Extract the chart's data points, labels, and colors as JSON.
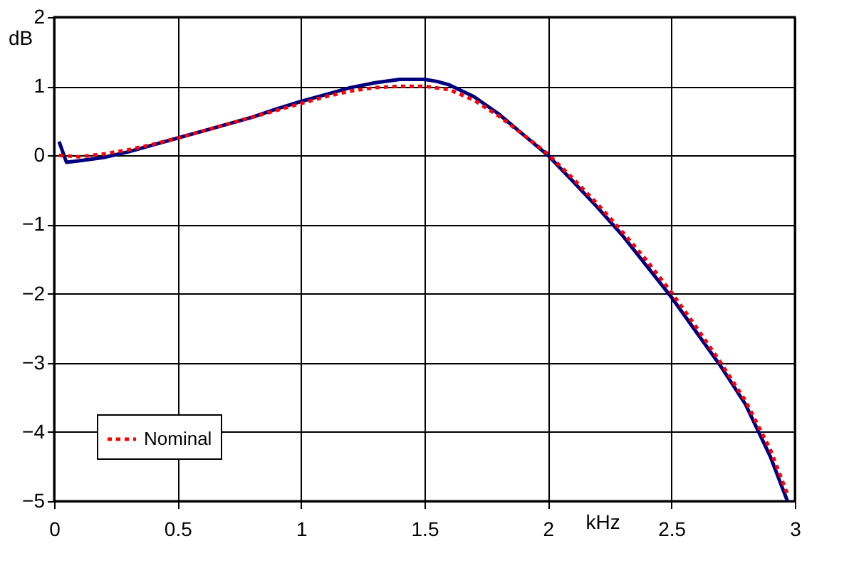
{
  "chart_data": {
    "type": "line",
    "xlabel": "kHz",
    "ylabel": "dB",
    "xlim": [
      0,
      3
    ],
    "xticks": [
      0,
      0.5,
      1,
      1.5,
      2,
      2.5,
      3
    ],
    "ylim": [
      -5,
      2
    ],
    "yticks": [
      -5,
      -4,
      -3,
      -2,
      -1,
      0,
      1,
      2
    ],
    "grid": true,
    "legend": "bottom left",
    "series": [
      {
        "color": "#00007f",
        "line_style": "solid",
        "x": [
          0.02,
          0.05,
          0.1,
          0.2,
          0.3,
          0.4,
          0.5,
          0.6,
          0.7,
          0.8,
          0.9,
          1.0,
          1.1,
          1.2,
          1.3,
          1.4,
          1.5,
          1.55,
          1.6,
          1.7,
          1.8,
          1.9,
          2.0,
          2.1,
          2.2,
          2.3,
          2.4,
          2.5,
          2.6,
          2.7,
          2.8,
          2.9,
          2.97
        ],
        "values": [
          0.2,
          -0.1,
          -0.08,
          -0.03,
          0.05,
          0.15,
          0.25,
          0.35,
          0.45,
          0.55,
          0.67,
          0.78,
          0.88,
          0.98,
          1.05,
          1.1,
          1.1,
          1.07,
          1.02,
          0.85,
          0.6,
          0.3,
          0,
          -0.37,
          -0.75,
          -1.15,
          -1.6,
          -2.05,
          -2.55,
          -3.05,
          -3.6,
          -4.35,
          -5
        ]
      },
      {
        "name": "Nominal",
        "color": "#ff0000",
        "line_style": "dotted",
        "x": [
          0.02,
          0.1,
          0.2,
          0.3,
          0.4,
          0.5,
          0.6,
          0.7,
          0.8,
          0.9,
          1.0,
          1.1,
          1.2,
          1.3,
          1.4,
          1.5,
          1.6,
          1.7,
          1.8,
          1.9,
          2.0,
          2.1,
          2.2,
          2.3,
          2.4,
          2.5,
          2.6,
          2.7,
          2.8,
          2.9,
          2.97
        ],
        "values": [
          0,
          -0.02,
          0.02,
          0.08,
          0.16,
          0.25,
          0.35,
          0.45,
          0.55,
          0.65,
          0.75,
          0.85,
          0.93,
          0.98,
          1.0,
          1.0,
          0.95,
          0.8,
          0.57,
          0.3,
          0.02,
          -0.33,
          -0.7,
          -1.1,
          -1.52,
          -1.98,
          -2.48,
          -3.0,
          -3.55,
          -4.25,
          -4.9
        ]
      }
    ]
  }
}
